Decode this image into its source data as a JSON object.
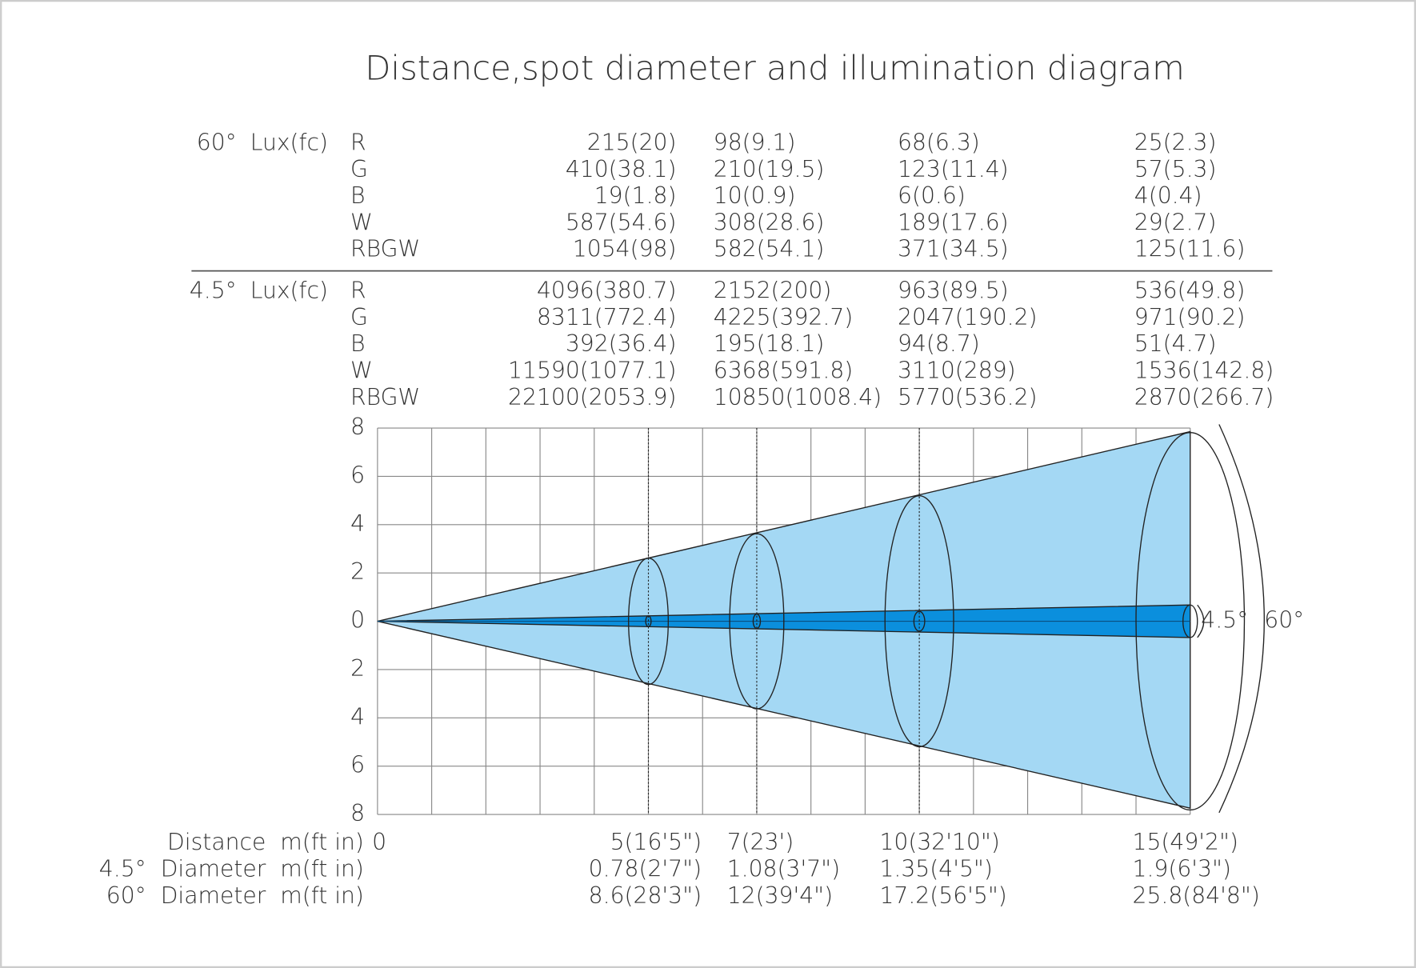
{
  "title": "Distance,spot diameter and illumination diagram",
  "lux_tables": [
    {
      "beam": "60°",
      "unit": "Lux(fc)",
      "rows": [
        {
          "channel": "R",
          "values": [
            "215(20)",
            "98(9.1)",
            "68(6.3)",
            "25(2.3)"
          ]
        },
        {
          "channel": "G",
          "values": [
            "410(38.1)",
            "210(19.5)",
            "123(11.4)",
            "57(5.3)"
          ]
        },
        {
          "channel": "B",
          "values": [
            "19(1.8)",
            "10(0.9)",
            "6(0.6)",
            "4(0.4)"
          ]
        },
        {
          "channel": "W",
          "values": [
            "587(54.6)",
            "308(28.6)",
            "189(17.6)",
            "29(2.7)"
          ]
        },
        {
          "channel": "RBGW",
          "values": [
            "1054(98)",
            "582(54.1)",
            "371(34.5)",
            "125(11.6)"
          ]
        }
      ]
    },
    {
      "beam": "4.5°",
      "unit": "Lux(fc)",
      "rows": [
        {
          "channel": "R",
          "values": [
            "4096(380.7)",
            "2152(200)",
            "963(89.5)",
            "536(49.8)"
          ]
        },
        {
          "channel": "G",
          "values": [
            "8311(772.4)",
            "4225(392.7)",
            "2047(190.2)",
            "971(90.2)"
          ]
        },
        {
          "channel": "B",
          "values": [
            "392(36.4)",
            "195(18.1)",
            "94(8.7)",
            "51(4.7)"
          ]
        },
        {
          "channel": "W",
          "values": [
            "11590(1077.1)",
            "6368(591.8)",
            "3110(289)",
            "1536(142.8)"
          ]
        },
        {
          "channel": "RBGW",
          "values": [
            "22100(2053.9)",
            "10850(1008.4)",
            "5770(536.2)",
            "2870(266.7)"
          ]
        }
      ]
    }
  ],
  "axis_ticks": [
    8,
    6,
    4,
    2,
    0,
    2,
    4,
    6,
    8
  ],
  "bottom_rows": [
    {
      "label": "Distance  m(ft in)",
      "origin": "0",
      "values": [
        "5(16'5\")",
        "7(23')",
        "10(32'10\")",
        "15(49'2\")"
      ]
    },
    {
      "label": "4.5°  Diameter  m(ft in)",
      "values": [
        "0.78(2'7\")",
        "1.08(3'7\")",
        "1.35(4'5\")",
        "1.9(6'3\")"
      ]
    },
    {
      "label": "60°  Diameter  m(ft in)",
      "values": [
        "8.6(28'3\")",
        "12(39'4\")",
        "17.2(56'5\")",
        "25.8(84'8\")"
      ]
    }
  ],
  "beam_labels": [
    "4.5°",
    "60°"
  ]
}
